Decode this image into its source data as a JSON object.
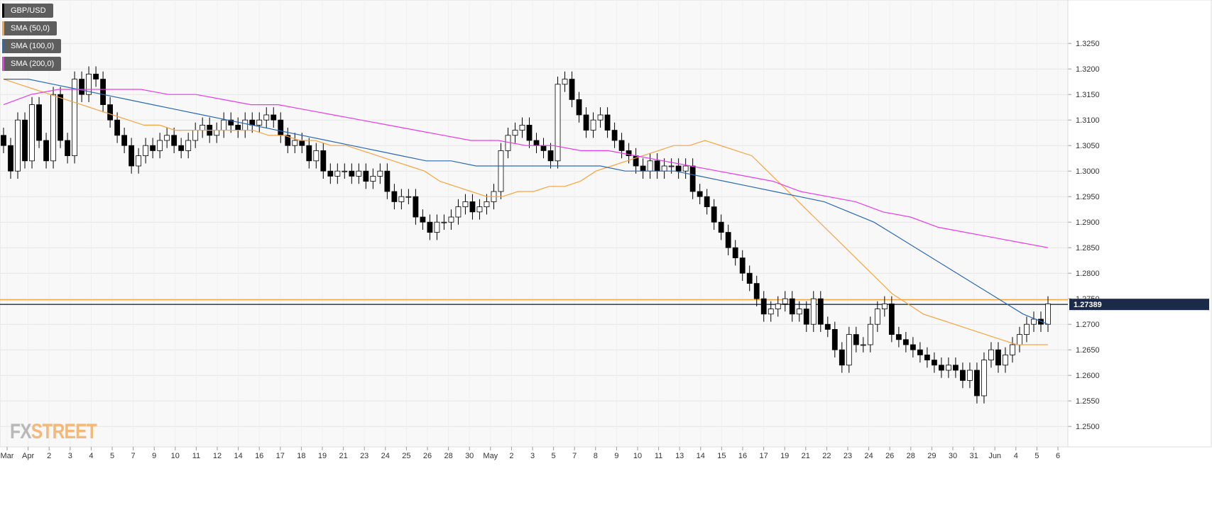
{
  "legend": [
    {
      "label": "GBP/USD",
      "color": "#000000"
    },
    {
      "label": "SMA (50,0)",
      "color": "#f7a440"
    },
    {
      "label": "SMA (100,0)",
      "color": "#2a6ab5"
    },
    {
      "label": "SMA (200,0)",
      "color": "#e83be8"
    }
  ],
  "logo": {
    "fx": "FX",
    "street": "STREET"
  },
  "price_tag": "1.27389",
  "chart_data": {
    "type": "line",
    "instrument": "GBP/USD",
    "ylim": [
      1.246,
      1.3335
    ],
    "y_ticks": [
      "1.3250",
      "1.3200",
      "1.3150",
      "1.3100",
      "1.3050",
      "1.3000",
      "1.2950",
      "1.2900",
      "1.2850",
      "1.2800",
      "1.2750",
      "1.2700",
      "1.2650",
      "1.2600",
      "1.2550",
      "1.2500"
    ],
    "y_tick_values": [
      1.325,
      1.32,
      1.315,
      1.31,
      1.305,
      1.3,
      1.295,
      1.29,
      1.285,
      1.28,
      1.275,
      1.27,
      1.265,
      1.26,
      1.255,
      1.25
    ],
    "x_ticks": [
      "Mar",
      "Apr",
      "2",
      "3",
      "4",
      "5",
      "7",
      "9",
      "10",
      "11",
      "12",
      "14",
      "16",
      "17",
      "18",
      "19",
      "21",
      "23",
      "24",
      "25",
      "26",
      "28",
      "30",
      "May",
      "2",
      "3",
      "5",
      "7",
      "8",
      "9",
      "10",
      "11",
      "13",
      "14",
      "15",
      "16",
      "17",
      "19",
      "21",
      "22",
      "23",
      "24",
      "26",
      "28",
      "29",
      "30",
      "31",
      "Jun",
      "4",
      "5",
      "6"
    ],
    "horizontal_levels": [
      {
        "value": 1.2748,
        "color": "#f7a440"
      },
      {
        "value": 1.27389,
        "color": "#1c2a4a"
      }
    ],
    "last_price": 1.27389,
    "series": [
      {
        "name": "GBP/USD",
        "color": "#000000",
        "values": [
          1.305,
          1.3,
          1.31,
          1.302,
          1.313,
          1.306,
          1.302,
          1.315,
          1.306,
          1.303,
          1.318,
          1.315,
          1.319,
          1.318,
          1.313,
          1.31,
          1.307,
          1.305,
          1.301,
          1.303,
          1.305,
          1.304,
          1.306,
          1.307,
          1.305,
          1.304,
          1.306,
          1.308,
          1.309,
          1.307,
          1.308,
          1.31,
          1.309,
          1.308,
          1.31,
          1.309,
          1.31,
          1.311,
          1.31,
          1.307,
          1.305,
          1.306,
          1.305,
          1.302,
          1.304,
          1.3,
          1.299,
          1.3,
          1.3,
          1.299,
          1.3,
          1.298,
          1.299,
          1.3,
          1.296,
          1.294,
          1.295,
          1.295,
          1.291,
          1.29,
          1.288,
          1.29,
          1.29,
          1.291,
          1.293,
          1.294,
          1.292,
          1.293,
          1.294,
          1.296,
          1.304,
          1.307,
          1.308,
          1.309,
          1.306,
          1.305,
          1.304,
          1.302,
          1.317,
          1.318,
          1.314,
          1.311,
          1.308,
          1.31,
          1.311,
          1.308,
          1.306,
          1.304,
          1.303,
          1.301,
          1.3,
          1.302,
          1.3,
          1.301,
          1.301,
          1.3,
          1.301,
          1.296,
          1.295,
          1.293,
          1.29,
          1.288,
          1.285,
          1.283,
          1.28,
          1.278,
          1.275,
          1.272,
          1.273,
          1.274,
          1.275,
          1.272,
          1.273,
          1.27,
          1.275,
          1.27,
          1.269,
          1.265,
          1.262,
          1.268,
          1.266,
          1.266,
          1.27,
          1.273,
          1.274,
          1.268,
          1.267,
          1.266,
          1.265,
          1.264,
          1.263,
          1.262,
          1.261,
          1.262,
          1.261,
          1.259,
          1.261,
          1.256,
          1.263,
          1.265,
          1.262,
          1.264,
          1.266,
          1.268,
          1.27,
          1.271,
          1.27,
          1.274
        ]
      },
      {
        "name": "SMA (50,0)",
        "color": "#f7a440",
        "values": [
          1.318,
          1.317,
          1.316,
          1.315,
          1.314,
          1.313,
          1.312,
          1.311,
          1.31,
          1.309,
          1.309,
          1.308,
          1.308,
          1.308,
          1.308,
          1.308,
          1.308,
          1.307,
          1.307,
          1.306,
          1.306,
          1.305,
          1.305,
          1.304,
          1.303,
          1.302,
          1.301,
          1.3,
          1.298,
          1.297,
          1.296,
          1.295,
          1.295,
          1.296,
          1.296,
          1.297,
          1.297,
          1.298,
          1.3,
          1.301,
          1.302,
          1.303,
          1.304,
          1.305,
          1.305,
          1.306,
          1.305,
          1.304,
          1.303,
          1.3,
          1.297,
          1.294,
          1.291,
          1.288,
          1.285,
          1.282,
          1.279,
          1.276,
          1.274,
          1.272,
          1.271,
          1.27,
          1.269,
          1.268,
          1.267,
          1.266,
          1.266,
          1.266
        ]
      },
      {
        "name": "SMA (100,0)",
        "color": "#2a6ab5",
        "values": [
          1.318,
          1.318,
          1.317,
          1.316,
          1.315,
          1.314,
          1.313,
          1.312,
          1.311,
          1.31,
          1.309,
          1.308,
          1.307,
          1.306,
          1.305,
          1.304,
          1.303,
          1.302,
          1.302,
          1.301,
          1.301,
          1.301,
          1.301,
          1.301,
          1.301,
          1.3,
          1.3,
          1.3,
          1.299,
          1.298,
          1.297,
          1.296,
          1.295,
          1.294,
          1.292,
          1.29,
          1.287,
          1.284,
          1.281,
          1.278,
          1.275,
          1.272,
          1.27
        ]
      },
      {
        "name": "SMA (200,0)",
        "color": "#e83be8",
        "values": [
          1.313,
          1.315,
          1.316,
          1.316,
          1.316,
          1.316,
          1.315,
          1.315,
          1.314,
          1.313,
          1.313,
          1.312,
          1.311,
          1.31,
          1.309,
          1.308,
          1.307,
          1.306,
          1.306,
          1.305,
          1.305,
          1.304,
          1.304,
          1.303,
          1.302,
          1.301,
          1.3,
          1.299,
          1.298,
          1.296,
          1.295,
          1.294,
          1.292,
          1.291,
          1.289,
          1.288,
          1.287,
          1.286,
          1.285
        ]
      }
    ]
  }
}
